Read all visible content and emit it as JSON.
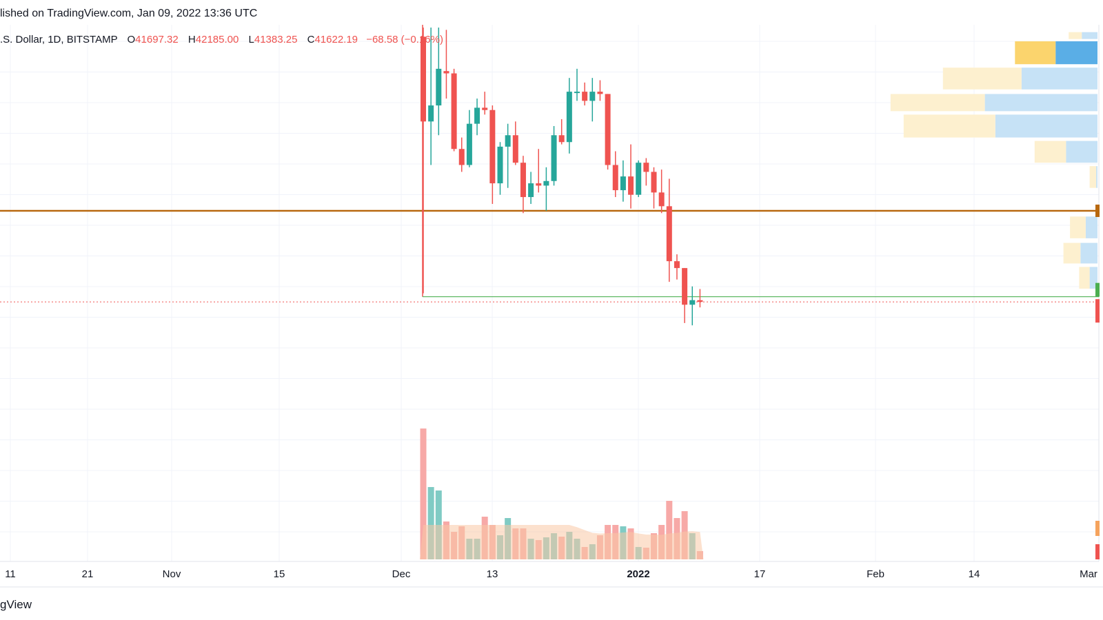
{
  "header": {
    "published": "lished on TradingView.com, Jan 09, 2022 13:36 UTC"
  },
  "legend": {
    "symbol": ".S. Dollar, 1D, BITSTAMP",
    "open_label": "O",
    "open": "41697.32",
    "high_label": "H",
    "high": "42185.00",
    "low_label": "L",
    "low": "41383.25",
    "close_label": "C",
    "close": "41622.19",
    "change": "−68.58 (−0.16%)"
  },
  "footer": {
    "brand": "gView"
  },
  "colors": {
    "up": "#26a69a",
    "down": "#ef5350",
    "up_volume": "#80cbc4",
    "down_volume": "#f7a9a7",
    "volume_ma": "#f9c9a5",
    "support_line": "#b8680f",
    "level_line": "#4caf50",
    "grid": "#f0f3fa",
    "profile_up": "#c6e2f6",
    "profile_down": "#fdf0cf",
    "profile_poc_up": "#5aaee6",
    "profile_poc_down": "#fbd46d"
  },
  "chart_data": {
    "type": "candlestick",
    "price_range": [
      38800,
      53600
    ],
    "x_ticks": [
      "11",
      "21",
      "Nov",
      "15",
      "Dec",
      "13",
      "2022",
      "17",
      "Feb",
      "14",
      "Mar"
    ],
    "candles": [
      {
        "date": "2021-12-04",
        "o": 53200,
        "h": 53600,
        "l": 42000,
        "c": 49500,
        "v": 1.9
      },
      {
        "date": "2021-12-05",
        "o": 49500,
        "h": 53600,
        "l": 47600,
        "c": 50200,
        "v": 1.05
      },
      {
        "date": "2021-12-06",
        "o": 50200,
        "h": 53600,
        "l": 48900,
        "c": 51800,
        "v": 1.0
      },
      {
        "date": "2021-12-07",
        "o": 51700,
        "h": 53500,
        "l": 50500,
        "c": 51600,
        "v": 0.55
      },
      {
        "date": "2021-12-08",
        "o": 51600,
        "h": 51800,
        "l": 48200,
        "c": 48300,
        "v": 0.4
      },
      {
        "date": "2021-12-09",
        "o": 48300,
        "h": 48800,
        "l": 47300,
        "c": 47600,
        "v": 0.48
      },
      {
        "date": "2021-12-10",
        "o": 47600,
        "h": 50000,
        "l": 47500,
        "c": 49400,
        "v": 0.3
      },
      {
        "date": "2021-12-11",
        "o": 49400,
        "h": 50500,
        "l": 48900,
        "c": 50100,
        "v": 0.3
      },
      {
        "date": "2021-12-12",
        "o": 50100,
        "h": 50800,
        "l": 49800,
        "c": 50000,
        "v": 0.62
      },
      {
        "date": "2021-12-13",
        "o": 50000,
        "h": 50200,
        "l": 45900,
        "c": 46800,
        "v": 0.5
      },
      {
        "date": "2021-12-14",
        "o": 46800,
        "h": 48600,
        "l": 46300,
        "c": 48400,
        "v": 0.35
      },
      {
        "date": "2021-12-15",
        "o": 48400,
        "h": 49400,
        "l": 46600,
        "c": 48900,
        "v": 0.6
      },
      {
        "date": "2021-12-16",
        "o": 48900,
        "h": 49500,
        "l": 47600,
        "c": 47700,
        "v": 0.45
      },
      {
        "date": "2021-12-17",
        "o": 47700,
        "h": 48000,
        "l": 45500,
        "c": 46200,
        "v": 0.45
      },
      {
        "date": "2021-12-18",
        "o": 46200,
        "h": 47300,
        "l": 45900,
        "c": 46800,
        "v": 0.3
      },
      {
        "date": "2021-12-19",
        "o": 46800,
        "h": 48300,
        "l": 46400,
        "c": 46700,
        "v": 0.28
      },
      {
        "date": "2021-12-20",
        "o": 46700,
        "h": 47500,
        "l": 45600,
        "c": 46900,
        "v": 0.32
      },
      {
        "date": "2021-12-21",
        "o": 46900,
        "h": 49300,
        "l": 46700,
        "c": 48900,
        "v": 0.38
      },
      {
        "date": "2021-12-22",
        "o": 48900,
        "h": 49600,
        "l": 48500,
        "c": 48600,
        "v": 0.33
      },
      {
        "date": "2021-12-23",
        "o": 48600,
        "h": 51400,
        "l": 48100,
        "c": 50800,
        "v": 0.4
      },
      {
        "date": "2021-12-24",
        "o": 50800,
        "h": 51800,
        "l": 50400,
        "c": 50800,
        "v": 0.3
      },
      {
        "date": "2021-12-25",
        "o": 50800,
        "h": 51200,
        "l": 50200,
        "c": 50400,
        "v": 0.18
      },
      {
        "date": "2021-12-26",
        "o": 50400,
        "h": 51400,
        "l": 49500,
        "c": 50800,
        "v": 0.22
      },
      {
        "date": "2021-12-27",
        "o": 50800,
        "h": 51300,
        "l": 50400,
        "c": 50700,
        "v": 0.35
      },
      {
        "date": "2021-12-28",
        "o": 50700,
        "h": 50700,
        "l": 47400,
        "c": 47600,
        "v": 0.5
      },
      {
        "date": "2021-12-29",
        "o": 47600,
        "h": 48200,
        "l": 46200,
        "c": 46500,
        "v": 0.5
      },
      {
        "date": "2021-12-30",
        "o": 46500,
        "h": 47800,
        "l": 46000,
        "c": 47100,
        "v": 0.48
      },
      {
        "date": "2021-12-31",
        "o": 47100,
        "h": 48500,
        "l": 45700,
        "c": 46300,
        "v": 0.45
      },
      {
        "date": "2022-01-01",
        "o": 46300,
        "h": 47800,
        "l": 46200,
        "c": 47700,
        "v": 0.18
      },
      {
        "date": "2022-01-02",
        "o": 47700,
        "h": 47900,
        "l": 46700,
        "c": 47300,
        "v": 0.17
      },
      {
        "date": "2022-01-03",
        "o": 47300,
        "h": 47500,
        "l": 45700,
        "c": 46400,
        "v": 0.38
      },
      {
        "date": "2022-01-04",
        "o": 46400,
        "h": 47400,
        "l": 45500,
        "c": 45800,
        "v": 0.5
      },
      {
        "date": "2022-01-05",
        "o": 45800,
        "h": 47000,
        "l": 42500,
        "c": 43400,
        "v": 0.85
      },
      {
        "date": "2022-01-06",
        "o": 43400,
        "h": 43700,
        "l": 42600,
        "c": 43100,
        "v": 0.6
      },
      {
        "date": "2022-01-07",
        "o": 43100,
        "h": 43100,
        "l": 40700,
        "c": 41500,
        "v": 0.7
      },
      {
        "date": "2022-01-08",
        "o": 41500,
        "h": 42300,
        "l": 40600,
        "c": 41700,
        "v": 0.38
      },
      {
        "date": "2022-01-09",
        "o": 41697.32,
        "h": 42185,
        "l": 41383.25,
        "c": 41622.19,
        "v": 0.12
      }
    ],
    "support_level": 45600,
    "level_line": 41850,
    "last_price": 41622.19,
    "volume_profile": [
      {
        "price_hi": 53400,
        "price_lo": 53100,
        "up": 0.6,
        "down": 0.5
      },
      {
        "price_hi": 53000,
        "price_lo": 52000,
        "up": 1.6,
        "down": 1.55,
        "poc": true
      },
      {
        "price_hi": 51850,
        "price_lo": 50900,
        "up": 2.9,
        "down": 3.0
      },
      {
        "price_hi": 50700,
        "price_lo": 49950,
        "up": 4.3,
        "down": 3.6
      },
      {
        "price_hi": 49800,
        "price_lo": 48800,
        "up": 3.9,
        "down": 3.5
      },
      {
        "price_hi": 48650,
        "price_lo": 47700,
        "up": 1.2,
        "down": 1.2
      },
      {
        "price_hi": 47550,
        "price_lo": 46600,
        "up": 0.05,
        "down": 0.25
      },
      {
        "price_hi": 45350,
        "price_lo": 44400,
        "up": 0.45,
        "down": 0.6
      },
      {
        "price_hi": 44200,
        "price_lo": 43300,
        "up": 0.65,
        "down": 0.65
      },
      {
        "price_hi": 43150,
        "price_lo": 42200,
        "up": 0.3,
        "down": 0.4
      }
    ]
  }
}
